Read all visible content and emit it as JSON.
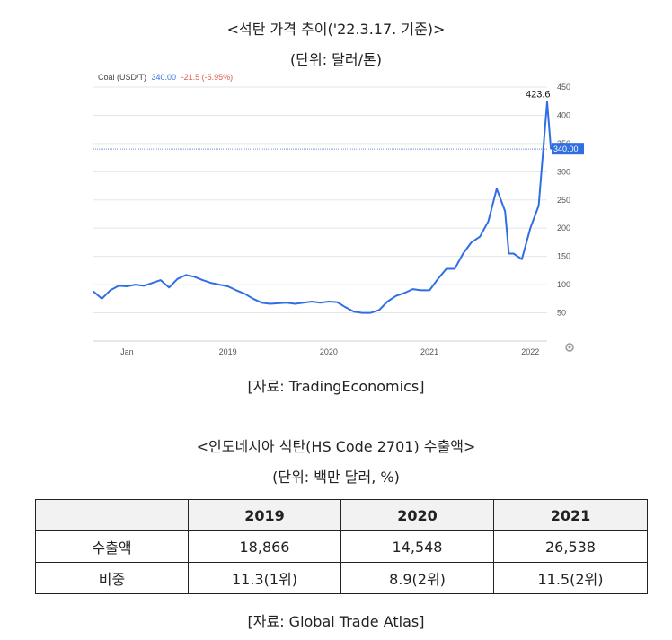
{
  "chart_section": {
    "title": "<석탄 가격 추이('22.3.17. 기준)>",
    "unit": "(단위: 달러/톤)",
    "source": "[자료: TradingEconomics]"
  },
  "chart_data": {
    "type": "line",
    "instrument": "Coal (USD/T)",
    "last_price": "340.00",
    "change": "-21.5 (-5.95%)",
    "peak_annotation": "423.6",
    "price_tag": "340.00",
    "y_ticks": [
      "450",
      "400",
      "350",
      "300",
      "250",
      "200",
      "150",
      "100",
      "50"
    ],
    "x_ticks": [
      "Jan",
      "2019",
      "2020",
      "2021",
      "2022"
    ],
    "ylim": [
      0,
      450
    ],
    "xlim": [
      "2017-09",
      "2022-03"
    ],
    "series": [
      {
        "x": [
          "2017-09",
          "2017-10",
          "2017-11",
          "2017-12",
          "2018-01",
          "2018-02",
          "2018-03",
          "2018-04",
          "2018-05",
          "2018-06",
          "2018-07",
          "2018-08",
          "2018-09",
          "2018-10",
          "2018-11",
          "2018-12",
          "2019-01",
          "2019-02",
          "2019-03",
          "2019-04",
          "2019-05",
          "2019-06",
          "2019-07",
          "2019-08",
          "2019-09",
          "2019-10",
          "2019-11",
          "2019-12",
          "2020-01",
          "2020-02",
          "2020-03",
          "2020-04",
          "2020-05",
          "2020-06",
          "2020-07",
          "2020-08",
          "2020-09",
          "2020-10",
          "2020-11",
          "2020-12",
          "2021-01",
          "2021-02",
          "2021-03",
          "2021-04",
          "2021-05",
          "2021-06",
          "2021-07",
          "2021-08",
          "2021-09",
          "2021-10",
          "2021-10",
          "2021-11",
          "2021-12",
          "2022-01",
          "2022-02",
          "2022-03",
          "2022-03"
        ],
        "values": [
          88,
          75,
          90,
          98,
          97,
          100,
          98,
          103,
          108,
          95,
          110,
          117,
          114,
          108,
          103,
          100,
          97,
          90,
          84,
          75,
          68,
          66,
          67,
          68,
          66,
          68,
          70,
          68,
          70,
          69,
          60,
          52,
          50,
          50,
          55,
          70,
          80,
          85,
          92,
          90,
          90,
          110,
          128,
          128,
          155,
          175,
          185,
          212,
          270,
          230,
          155,
          155,
          145,
          200,
          240,
          423.6,
          340
        ]
      }
    ]
  },
  "table_section": {
    "title": "<인도네시아 석탄(HS Code 2701) 수출액>",
    "unit": "(단위: 백만 달러, %)",
    "headers": [
      "",
      "2019",
      "2020",
      "2021"
    ],
    "rows": [
      {
        "label": "수출액",
        "cells": [
          "18,866",
          "14,548",
          "26,538"
        ]
      },
      {
        "label": "비중",
        "cells": [
          "11.3(1위)",
          "8.9(2위)",
          "11.5(2위)"
        ]
      }
    ],
    "source": "[자료: Global Trade Atlas]"
  },
  "colors": {
    "line": "#2f6ee3",
    "tag": "#2f6ee3",
    "change_negative": "#e05a4f",
    "grid": "#e6e6e6"
  }
}
